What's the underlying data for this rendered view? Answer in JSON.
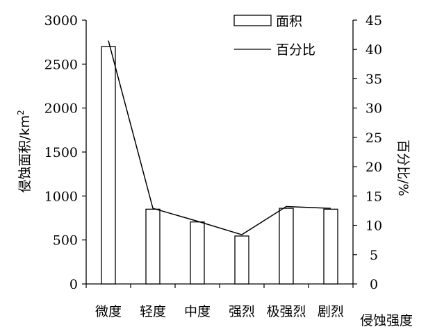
{
  "chart_data": {
    "type": "bar",
    "categories": [
      "微度",
      "轻度",
      "中度",
      "强烈",
      "极强烈",
      "剧烈"
    ],
    "series": [
      {
        "name": "面积",
        "type": "bar",
        "axis": "left",
        "values": [
          2700,
          850,
          705,
          545,
          860,
          850
        ]
      },
      {
        "name": "百分比",
        "type": "line",
        "axis": "right",
        "values": [
          41.5,
          12.9,
          10.7,
          8.4,
          13.2,
          12.9
        ]
      }
    ],
    "xlabel": "侵蚀强度",
    "ylabel": "侵蚀面积/km",
    "ylabel_superscript": "2",
    "y2label": "百分比/%",
    "ylim": [
      0,
      3000
    ],
    "y2lim": [
      0,
      45
    ],
    "yticks": [
      "0",
      "500",
      "1000",
      "1500",
      "2000",
      "2500",
      "3000"
    ],
    "y2ticks": [
      "0",
      "5",
      "10",
      "15",
      "20",
      "25",
      "30",
      "35",
      "40",
      "45"
    ],
    "legend_position": "top-right",
    "grid": false,
    "colors": {
      "bar_fill": "#ffffff",
      "stroke": "#000000"
    }
  }
}
